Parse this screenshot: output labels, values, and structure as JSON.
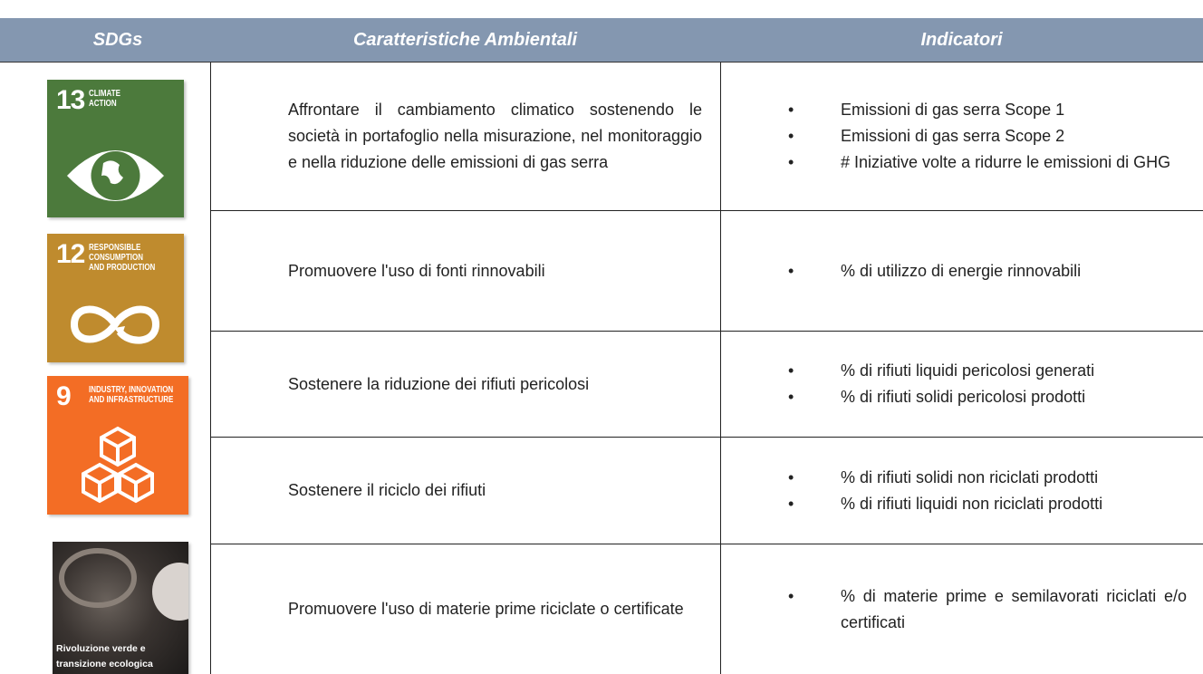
{
  "header": [
    "SDGs",
    "Caratteristiche Ambientali",
    "Indicatori"
  ],
  "rows": [
    {
      "sdg": {
        "number": "13",
        "label": [
          "CLIMATE",
          "ACTION"
        ]
      },
      "caratteristica": "Affrontare il cambiamento climatico sostenendo le società in portafoglio nella misurazione, nel monitoraggio e nella riduzione delle emissioni di gas serra",
      "indicatori": [
        "Emissioni di gas serra Scope 1",
        "Emissioni di gas serra Scope 2",
        "# Iniziative volte a ridurre le emissioni di GHG"
      ]
    },
    {
      "sdg": {
        "number": "12",
        "label": [
          "RESPONSIBLE",
          "CONSUMPTION",
          "AND PRODUCTION"
        ]
      },
      "caratteristica": "Promuovere l'uso di fonti rinnovabili",
      "indicatori": [
        "% di utilizzo di energie rinnovabili"
      ]
    },
    {
      "sdg": {
        "number": "9",
        "label": [
          "INDUSTRY, INNOVATION",
          "AND INFRASTRUCTURE"
        ]
      },
      "caratteristica": "Sostenere la riduzione dei rifiuti pericolosi",
      "indicatori": [
        "% di rifiuti liquidi pericolosi generati",
        "% di rifiuti solidi pericolosi prodotti"
      ]
    },
    {
      "caratteristica": "Sostenere il riciclo dei rifiuti",
      "indicatori": [
        "% di rifiuti solidi non riciclati prodotti",
        "% di rifiuti liquidi non riciclati prodotti"
      ]
    },
    {
      "sdg": {
        "label": [
          "Rivoluzione verde e",
          "transizione ecologica"
        ]
      },
      "caratteristica": "Promuovere l'uso di materie prime riciclate o certificate",
      "indicatori": [
        "% di materie prime e semilavorati riciclati e/o certificati"
      ]
    }
  ]
}
